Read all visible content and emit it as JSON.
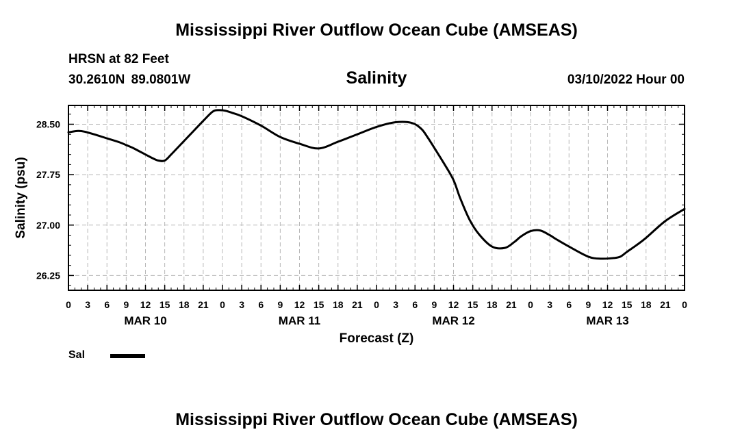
{
  "header": {
    "main_title": "Mississippi River Outflow Ocean Cube (AMSEAS)",
    "station": "HRSN at 82 Feet",
    "coordinates": "30.2610N  89.0801W",
    "variable": "Salinity",
    "datetime": "03/10/2022 Hour 00"
  },
  "footer": {
    "title": "Mississippi River Outflow Ocean Cube (AMSEAS)"
  },
  "legend": {
    "label": "Sal",
    "color": "#000000"
  },
  "chart_data": {
    "type": "line",
    "title": "Salinity",
    "xlabel": "Forecast (Z)",
    "ylabel": "Salinity (psu)",
    "xlim": [
      0,
      96
    ],
    "ylim": [
      26.03,
      28.78
    ],
    "grid": true,
    "y_ticks": [
      26.25,
      27.0,
      27.75,
      28.5
    ],
    "y_tick_labels": [
      "26.25",
      "27.00",
      "27.75",
      "28.50"
    ],
    "x_tick_hours": [
      0,
      3,
      6,
      9,
      12,
      15,
      18,
      21,
      24,
      27,
      30,
      33,
      36,
      39,
      42,
      45,
      48,
      51,
      54,
      57,
      60,
      63,
      66,
      69,
      72,
      75,
      78,
      81,
      84,
      87,
      90,
      93,
      96
    ],
    "x_tick_labels": [
      "0",
      "3",
      "6",
      "9",
      "12",
      "15",
      "18",
      "21",
      "0",
      "3",
      "6",
      "9",
      "12",
      "15",
      "18",
      "21",
      "0",
      "3",
      "6",
      "9",
      "12",
      "15",
      "18",
      "21",
      "0",
      "3",
      "6",
      "9",
      "12",
      "15",
      "18",
      "21",
      "0"
    ],
    "day_labels": [
      {
        "hour": 12,
        "label": "MAR 10"
      },
      {
        "hour": 36,
        "label": "MAR 11"
      },
      {
        "hour": 60,
        "label": "MAR 12"
      },
      {
        "hour": 84,
        "label": "MAR 13"
      }
    ],
    "series": [
      {
        "name": "Sal",
        "color": "#000000",
        "x": [
          0,
          1.5,
          2.5,
          4,
          6,
          8,
          9,
          10,
          11,
          12,
          13,
          14,
          15,
          16,
          17,
          19,
          21,
          22.5,
          23.5,
          24.5,
          25.5,
          27,
          30,
          33,
          36,
          39,
          42,
          45,
          48,
          51,
          53.5,
          55,
          56,
          57,
          58.5,
          60,
          61,
          62.5,
          64,
          66,
          68,
          69.5,
          70.5,
          72,
          73.5,
          75,
          76,
          78,
          81,
          83,
          85,
          86,
          87,
          88.5,
          90,
          93,
          96
        ],
        "y": [
          28.38,
          28.4,
          28.39,
          28.35,
          28.29,
          28.23,
          28.19,
          28.15,
          28.1,
          28.05,
          28.0,
          27.96,
          27.96,
          28.05,
          28.15,
          28.35,
          28.55,
          28.69,
          28.71,
          28.7,
          28.67,
          28.62,
          28.48,
          28.31,
          28.21,
          28.14,
          28.24,
          28.35,
          28.46,
          28.53,
          28.52,
          28.43,
          28.3,
          28.15,
          27.92,
          27.67,
          27.41,
          27.08,
          26.86,
          26.68,
          26.66,
          26.75,
          26.83,
          26.91,
          26.92,
          26.85,
          26.79,
          26.68,
          26.53,
          26.5,
          26.51,
          26.53,
          26.6,
          26.7,
          26.81,
          27.06,
          27.24
        ]
      }
    ]
  }
}
